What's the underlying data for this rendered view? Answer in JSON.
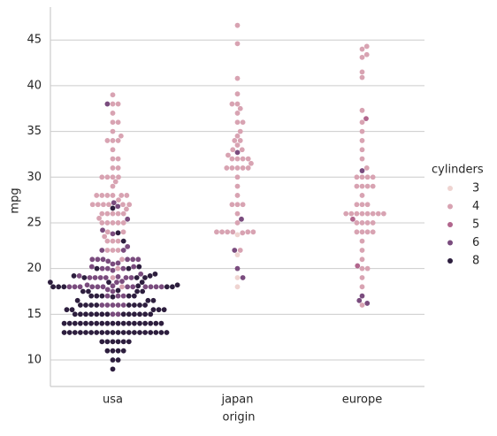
{
  "chart_data": {
    "type": "swarm",
    "x_label": "origin",
    "y_label": "mpg",
    "categories": [
      "usa",
      "japan",
      "europe"
    ],
    "ylim": [
      7.1,
      48.6
    ],
    "yticks": [
      10,
      15,
      20,
      25,
      30,
      35,
      40,
      45
    ],
    "grid": true,
    "legend_title": "cylinders",
    "legend_position": "right",
    "series": [
      {
        "name": "3",
        "color": "#efd4d1",
        "values": [
          [],
          [
            18,
            19,
            21.5,
            23.7
          ],
          []
        ]
      },
      {
        "name": "4",
        "color": "#d8a3b2",
        "values": [
          [
            18,
            19,
            20,
            21,
            22,
            22,
            22,
            23,
            23,
            23,
            23.5,
            24,
            24,
            25,
            25,
            25,
            25,
            25,
            25.5,
            26,
            26,
            26,
            26,
            26,
            26.5,
            27,
            27,
            27,
            27,
            27,
            27,
            27.5,
            28,
            28,
            28,
            28,
            28,
            28,
            29,
            29.5,
            30,
            30,
            30,
            30,
            31,
            31,
            32,
            32,
            33,
            34,
            34,
            34,
            34.5,
            35,
            36,
            36,
            37,
            38,
            38,
            39
          ],
          [
            22,
            23.9,
            24,
            24,
            24,
            24,
            24,
            24,
            25,
            26,
            27,
            27,
            27,
            28,
            29,
            30,
            31,
            31,
            31,
            31,
            31,
            31.5,
            32,
            32,
            32,
            32,
            32.4,
            33,
            33,
            33.5,
            34,
            34,
            34.5,
            35,
            36,
            36,
            37,
            37.5,
            38,
            38,
            39.1,
            40.8,
            44.6,
            46.6
          ],
          [
            16,
            18,
            19,
            20,
            20,
            21,
            22,
            23,
            24,
            24,
            24,
            24,
            25,
            25,
            25,
            25,
            26,
            26,
            26,
            26,
            26,
            26,
            26,
            26,
            27,
            27,
            27,
            28,
            29,
            29,
            29,
            29,
            30,
            30,
            30,
            30,
            31,
            32,
            33,
            34,
            35,
            36,
            37.3,
            40.9,
            41.5,
            43.1,
            43.4,
            44,
            44.3
          ]
        ]
      },
      {
        "name": "5",
        "color": "#b1668d",
        "values": [
          [],
          [],
          [
            20.3,
            25.4,
            36.4
          ]
        ]
      },
      {
        "name": "6",
        "color": "#7a4c7e",
        "values": [
          [
            15,
            15,
            16,
            16,
            16,
            16,
            16,
            17,
            17,
            17,
            17.5,
            17.7,
            18,
            18,
            18,
            18,
            18,
            18,
            18,
            18,
            18,
            18,
            18,
            18,
            18.1,
            18.2,
            18.5,
            18.6,
            19,
            19,
            19,
            19,
            19,
            19,
            19.1,
            19.2,
            19.4,
            19.8,
            20,
            20,
            20,
            20.2,
            20.2,
            20.5,
            20.6,
            20.8,
            21,
            21,
            21,
            21,
            21,
            21,
            22,
            22,
            22.4,
            23.8,
            24.2,
            25.4,
            26.8,
            27.2,
            38
          ],
          [
            19,
            20,
            22,
            25.4,
            32.7
          ],
          [
            16.2,
            16.5,
            17,
            30.7
          ]
        ]
      },
      {
        "name": "8",
        "color": "#2d1e3e",
        "values": [
          [
            9,
            10,
            10,
            11,
            11,
            11,
            11,
            12,
            12,
            12,
            12,
            12,
            12,
            13,
            13,
            13,
            13,
            13,
            13,
            13,
            13,
            13,
            13,
            13,
            13,
            13,
            13,
            13,
            13,
            13,
            13,
            13,
            13,
            14,
            14,
            14,
            14,
            14,
            14,
            14,
            14,
            14,
            14,
            14,
            14,
            14,
            14,
            14,
            14,
            14,
            14,
            14,
            15,
            15,
            15,
            15,
            15,
            15,
            15,
            15,
            15,
            15,
            15,
            15,
            15,
            15.5,
            15.5,
            15.5,
            15.5,
            15.5,
            16,
            16,
            16,
            16,
            16,
            16,
            16,
            16,
            16.5,
            16.5,
            16.5,
            16.9,
            17,
            17,
            17,
            17,
            17,
            17.5,
            17.5,
            17.5,
            17.5,
            17.6,
            18,
            18,
            18,
            18,
            18,
            18.1,
            18.2,
            18.5,
            18.5,
            18.5,
            19,
            19,
            19,
            19.2,
            19.2,
            19.4,
            20,
            20,
            20.2,
            23,
            23.9,
            26.6
          ],
          [],
          []
        ]
      }
    ]
  }
}
